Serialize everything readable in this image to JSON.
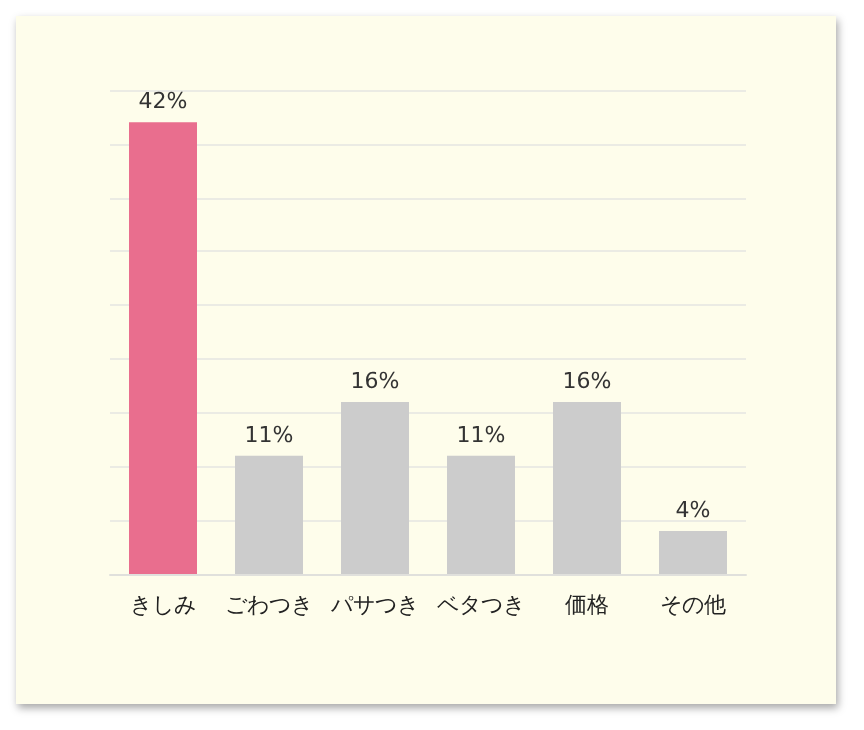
{
  "chart_data": {
    "type": "bar",
    "categories": [
      "きしみ",
      "ごわつき",
      "パサつき",
      "ベタつき",
      "価格",
      "その他"
    ],
    "values": [
      42,
      11,
      16,
      11,
      16,
      4
    ],
    "colors": [
      "#e96e8e",
      "#cccccc",
      "#cccccc",
      "#cccccc",
      "#cccccc",
      "#cccccc"
    ],
    "value_labels": [
      "42%",
      "11%",
      "16%",
      "11%",
      "16%",
      "4%"
    ],
    "ylim": [
      0,
      45
    ],
    "yticks": [
      {
        "value": 0,
        "label": null
      },
      {
        "value": 5,
        "label": null
      },
      {
        "value": 10,
        "label": null
      },
      {
        "value": 15,
        "label": null
      },
      {
        "value": 20,
        "label": null
      },
      {
        "value": 25,
        "label": null
      },
      {
        "value": 30,
        "label": null
      },
      {
        "value": 35,
        "label": null
      },
      {
        "value": 40,
        "label": null
      },
      {
        "value": 45,
        "label": null
      }
    ],
    "grid": "y",
    "tick_labels": "x"
  }
}
